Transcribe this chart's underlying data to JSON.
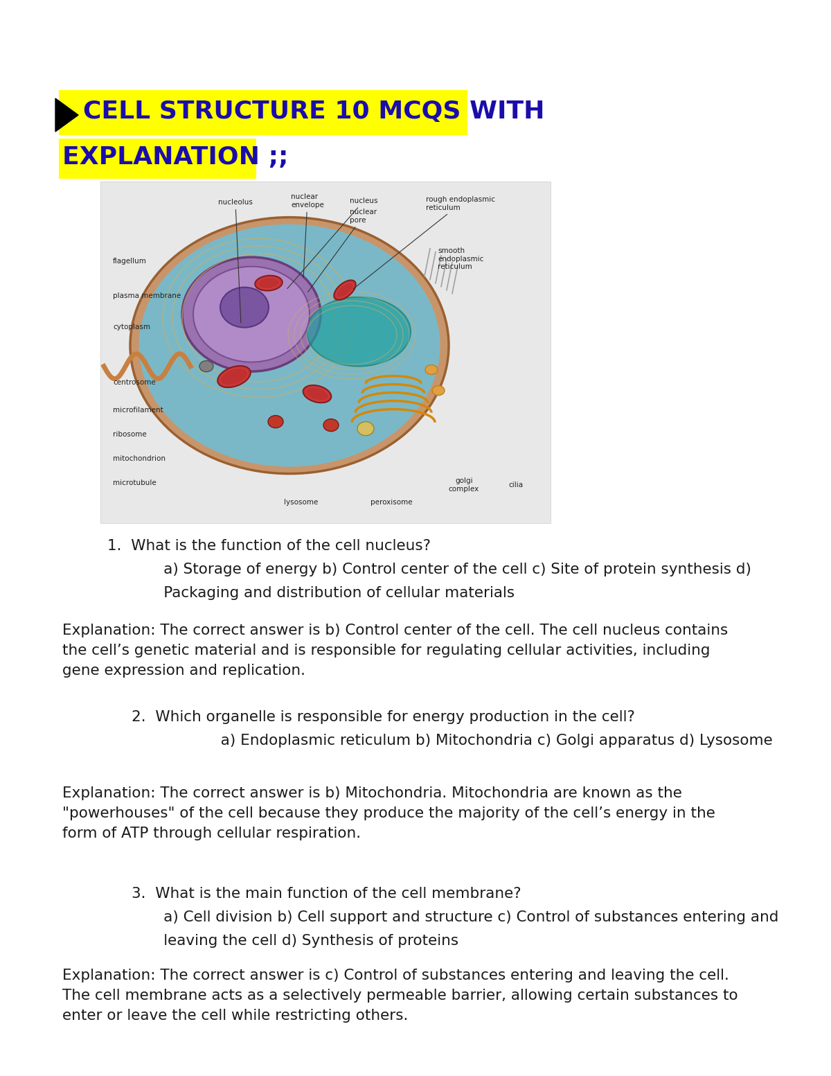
{
  "bg_color": "#ffffff",
  "title_line1": "CELL STRUCTURE 10 MCQS WITH",
  "title_line2": "EXPLANATION ;;",
  "title_color": "#1a0dab",
  "title_highlight": "#ffff00",
  "title_fontsize": 26,
  "q1_question": "1.  What is the function of the cell nucleus?",
  "q1_opt_line1": "      a) Storage of energy b) Control center of the cell c) Site of protein synthesis d)",
  "q1_opt_line2": "      Packaging and distribution of cellular materials",
  "q1_exp": "Explanation: The correct answer is b) Control center of the cell. The cell nucleus contains\nthe cell’s genetic material and is responsible for regulating cellular activities, including\ngene expression and replication.",
  "q2_question": "2.  Which organelle is responsible for energy production in the cell?",
  "q2_opts": "                  a) Endoplasmic reticulum b) Mitochondria c) Golgi apparatus d) Lysosome",
  "q2_exp": "Explanation: The correct answer is b) Mitochondria. Mitochondria are known as the\n\"powerhouses\" of the cell because they produce the majority of the cell’s energy in the\nform of ATP through cellular respiration.",
  "q3_question": "3.  What is the main function of the cell membrane?",
  "q3_opt_line1": "      a) Cell division b) Cell support and structure c) Control of substances entering and",
  "q3_opt_line2": "      leaving the cell d) Synthesis of proteins",
  "q3_exp": "Explanation: The correct answer is c) Control of substances entering and leaving the cell.\nThe cell membrane acts as a selectively permeable barrier, allowing certain substances to\nenter or leave the cell while restricting others.",
  "text_fontsize": 15.5,
  "q_fontsize": 15.5
}
